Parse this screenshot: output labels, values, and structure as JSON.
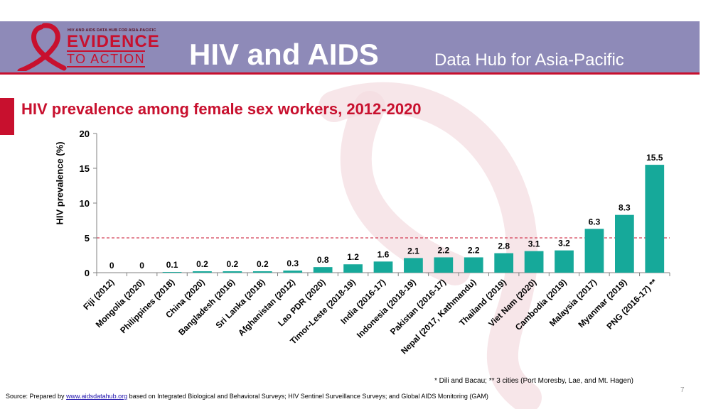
{
  "header": {
    "logo": {
      "small_text": "HIV AND AIDS DATA HUB FOR ASIA-PACIFIC",
      "line1": "EVIDENCE",
      "line2": "TO ACTION"
    },
    "title": "HIV and AIDS",
    "subtitle": "Data Hub for Asia-Pacific"
  },
  "colors": {
    "brand_red": "#c8102e",
    "header_purple": "#8e8ab8",
    "bar": "#16a99a"
  },
  "chart_data": {
    "type": "bar",
    "title": "HIV prevalence among female sex workers, 2012-2020",
    "xlabel": "",
    "ylabel": "HIV prevalence (%)",
    "ylim": [
      0,
      20
    ],
    "yticks": [
      0,
      5,
      10,
      15,
      20
    ],
    "reference_line": 5,
    "grid": false,
    "categories": [
      "Fiji (2012)",
      "Mongolia (2020)",
      "Philippines (2018)",
      "China (2020)",
      "Bangladesh (2016)",
      "Sri Lanka (2018)",
      "Afghanistan (2012)",
      "Lao PDR (2020)",
      "Timor-Leste (2018-19)",
      "India (2016-17)",
      "Indonesia (2018-19)",
      "Pakistan (2016-17)",
      "Nepal (2017, Kathmandu)",
      "Thailand (2019)",
      "Viet Nam (2020)",
      "Cambodia (2019)",
      "Malaysia (2017)",
      "Myanmar (2019)",
      "PNG (2016-17) **"
    ],
    "values": [
      0,
      0,
      0.1,
      0.2,
      0.2,
      0.2,
      0.3,
      0.8,
      1.2,
      1.6,
      2.1,
      2.2,
      2.2,
      2.8,
      3.1,
      3.2,
      6.3,
      8.3,
      15.5
    ],
    "labels": [
      "0",
      "0",
      "0.1",
      "0.2",
      "0.2",
      "0.2",
      "0.3",
      "0.8",
      "1.2",
      "1.6",
      "2.1",
      "2.2",
      "2.2",
      "2.8",
      "3.1",
      "3.2",
      "6.3",
      "8.3",
      "15.5"
    ]
  },
  "footnote": "* Dili and Bacau;    ** 3 cities (Port Moresby, Lae, and Mt. Hagen)",
  "page_number": "7",
  "source": {
    "prefix": "Source: Prepared by ",
    "link": "www.aidsdatahub.org",
    "suffix": " based on Integrated Biological and Behavioral Surveys; HIV Sentinel Surveillance Surveys; and Global AIDS Monitoring (GAM)"
  }
}
